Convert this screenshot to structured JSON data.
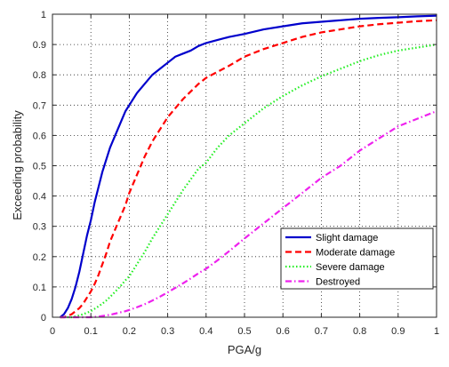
{
  "chart_data": {
    "type": "line",
    "title": "",
    "xlabel": "PGA/g",
    "ylabel": "Exceeding probability",
    "xlim": [
      0,
      1
    ],
    "ylim": [
      0,
      1
    ],
    "xticks": [
      "0",
      "0.1",
      "0.2",
      "0.3",
      "0.4",
      "0.5",
      "0.6",
      "0.7",
      "0.8",
      "0.9",
      "1"
    ],
    "yticks": [
      "0",
      "0.1",
      "0.2",
      "0.3",
      "0.4",
      "0.5",
      "0.6",
      "0.7",
      "0.8",
      "0.9",
      "1"
    ],
    "grid": "dotted",
    "legend_position": "bottom-right",
    "x": [
      0.02,
      0.03,
      0.04,
      0.05,
      0.06,
      0.07,
      0.08,
      0.09,
      0.1,
      0.11,
      0.12,
      0.13,
      0.14,
      0.15,
      0.16,
      0.17,
      0.18,
      0.19,
      0.2,
      0.22,
      0.24,
      0.26,
      0.28,
      0.3,
      0.32,
      0.34,
      0.36,
      0.38,
      0.4,
      0.43,
      0.46,
      0.5,
      0.55,
      0.6,
      0.65,
      0.7,
      0.75,
      0.8,
      0.85,
      0.9,
      0.95,
      1.0
    ],
    "series": [
      {
        "name": "Slight damage",
        "color": "#0000cc",
        "style": "solid",
        "values": [
          0.0,
          0.01,
          0.03,
          0.06,
          0.1,
          0.15,
          0.21,
          0.27,
          0.32,
          0.38,
          0.43,
          0.48,
          0.52,
          0.56,
          0.59,
          0.62,
          0.65,
          0.68,
          0.7,
          0.74,
          0.77,
          0.8,
          0.82,
          0.84,
          0.86,
          0.87,
          0.88,
          0.895,
          0.905,
          0.915,
          0.925,
          0.935,
          0.95,
          0.96,
          0.97,
          0.975,
          0.98,
          0.985,
          0.988,
          0.99,
          0.993,
          0.995
        ]
      },
      {
        "name": "Moderate damage",
        "color": "#ff0000",
        "style": "dashed",
        "values": [
          0.0,
          0.0,
          0.005,
          0.01,
          0.02,
          0.03,
          0.045,
          0.065,
          0.085,
          0.11,
          0.14,
          0.175,
          0.21,
          0.25,
          0.28,
          0.31,
          0.34,
          0.37,
          0.41,
          0.47,
          0.53,
          0.58,
          0.62,
          0.66,
          0.69,
          0.72,
          0.745,
          0.77,
          0.79,
          0.81,
          0.83,
          0.86,
          0.885,
          0.905,
          0.925,
          0.94,
          0.95,
          0.96,
          0.967,
          0.972,
          0.977,
          0.98
        ]
      },
      {
        "name": "Severe damage",
        "color": "#22ee22",
        "style": "dotted",
        "values": [
          0.0,
          0.0,
          0.0,
          0.0,
          0.003,
          0.006,
          0.01,
          0.015,
          0.02,
          0.028,
          0.036,
          0.045,
          0.055,
          0.067,
          0.08,
          0.093,
          0.107,
          0.122,
          0.135,
          0.175,
          0.215,
          0.26,
          0.3,
          0.34,
          0.38,
          0.42,
          0.455,
          0.49,
          0.51,
          0.56,
          0.6,
          0.64,
          0.69,
          0.73,
          0.765,
          0.795,
          0.82,
          0.845,
          0.865,
          0.88,
          0.89,
          0.9
        ]
      },
      {
        "name": "Destroyed",
        "color": "#ee22ee",
        "style": "dashdot",
        "values": [
          0.0,
          0.0,
          0.0,
          0.0,
          0.0,
          0.0,
          0.0,
          0.0,
          0.0,
          0.001,
          0.002,
          0.004,
          0.006,
          0.008,
          0.011,
          0.014,
          0.017,
          0.02,
          0.024,
          0.033,
          0.043,
          0.055,
          0.068,
          0.082,
          0.097,
          0.112,
          0.128,
          0.145,
          0.16,
          0.188,
          0.218,
          0.26,
          0.31,
          0.36,
          0.41,
          0.46,
          0.5,
          0.55,
          0.59,
          0.63,
          0.655,
          0.68
        ]
      }
    ]
  }
}
